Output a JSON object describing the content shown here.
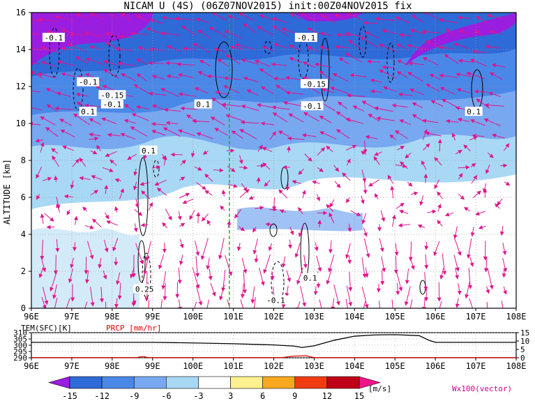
{
  "title": "NICAM U (4S) (06Z07NOV2015) init:00Z04NOV2015 fix",
  "chart_data": {
    "type": "heatmap",
    "variable": "U",
    "x_ticks": [
      "96E",
      "97E",
      "98E",
      "99E",
      "100E",
      "101E",
      "102E",
      "103E",
      "104E",
      "105E",
      "106E",
      "107E",
      "108E"
    ],
    "x_range": [
      96,
      108
    ],
    "y_label": "ALTITUDE [km]",
    "y_ticks": [
      "0",
      "2",
      "4",
      "6",
      "8",
      "10",
      "12",
      "14",
      "16"
    ],
    "y_range": [
      0,
      16
    ],
    "marker_longitude": 100.9,
    "contour_labels": [
      {
        "text": "-0.1",
        "lon": 96.55,
        "alt": 14.6
      },
      {
        "text": "-0.1",
        "lon": 97.4,
        "alt": 12.2
      },
      {
        "text": "-0.15",
        "lon": 98.0,
        "alt": 11.5
      },
      {
        "text": "-0.1",
        "lon": 98.0,
        "alt": 11.0
      },
      {
        "text": "0.1",
        "lon": 97.4,
        "alt": 10.6
      },
      {
        "text": "0.1",
        "lon": 100.25,
        "alt": 11.0
      },
      {
        "text": "0.1",
        "lon": 98.9,
        "alt": 8.5
      },
      {
        "text": "0.25",
        "lon": 98.8,
        "alt": 1.0
      },
      {
        "text": "-0.1",
        "lon": 102.05,
        "alt": 0.4
      },
      {
        "text": "0.1",
        "lon": 102.9,
        "alt": 1.6
      },
      {
        "text": "-0.1",
        "lon": 102.8,
        "alt": 14.6
      },
      {
        "text": "-0.15",
        "lon": 103.0,
        "alt": 12.1
      },
      {
        "text": "-0.1",
        "lon": 102.95,
        "alt": 10.9
      },
      {
        "text": "0.1",
        "lon": 106.95,
        "alt": 10.6
      }
    ],
    "lower_panel": {
      "temperature_label": "TEM(SFC)[K]",
      "precip_label": "PRCP [mm/hr]",
      "temp_ticks": [
        "310",
        "305",
        "300",
        "295",
        "290"
      ],
      "temp_range": [
        290,
        310
      ],
      "precip_ticks": [
        "15",
        "10",
        "5",
        "0"
      ],
      "precip_range": [
        0,
        15
      ],
      "x_ticks": [
        "96E",
        "97E",
        "98E",
        "99E",
        "100E",
        "101E",
        "102E",
        "103E",
        "104E",
        "105E",
        "106E",
        "107E",
        "108E"
      ],
      "temperature": [
        [
          96,
          302.3
        ],
        [
          97,
          302.3
        ],
        [
          98,
          302.3
        ],
        [
          99,
          302.3
        ],
        [
          100,
          301.8
        ],
        [
          101,
          301.2
        ],
        [
          102,
          300.2
        ],
        [
          102.5,
          299.3
        ],
        [
          102.7,
          298.2
        ],
        [
          103,
          299.5
        ],
        [
          103.5,
          304.0
        ],
        [
          104,
          307.2
        ],
        [
          104.5,
          308.2
        ],
        [
          105,
          308.4
        ],
        [
          105.6,
          307.6
        ],
        [
          105.85,
          303.8
        ],
        [
          106,
          302.3
        ],
        [
          107,
          302.3
        ],
        [
          108,
          302.3
        ]
      ],
      "precipitation": [
        [
          96,
          0.1
        ],
        [
          98.6,
          0.1
        ],
        [
          98.75,
          0.8
        ],
        [
          98.9,
          0.1
        ],
        [
          101,
          0.1
        ],
        [
          102.2,
          0.1
        ],
        [
          102.5,
          1.0
        ],
        [
          102.8,
          1.2
        ],
        [
          103.0,
          0.1
        ],
        [
          108,
          0.1
        ]
      ]
    },
    "colorbar": {
      "ticks": [
        "-15",
        "-12",
        "-9",
        "-6",
        "-3",
        "3",
        "6",
        "9",
        "12",
        "15"
      ],
      "unit": "[m/s]",
      "colors": [
        "#9a1ee0",
        "#2e6ad8",
        "#4a88e8",
        "#78a8f0",
        "#a8d8f4",
        "#ffffff",
        "#fff090",
        "#f8a820",
        "#f03c10",
        "#c00018",
        "#f0148c"
      ]
    },
    "vector_note": "Wx100(vector)"
  }
}
